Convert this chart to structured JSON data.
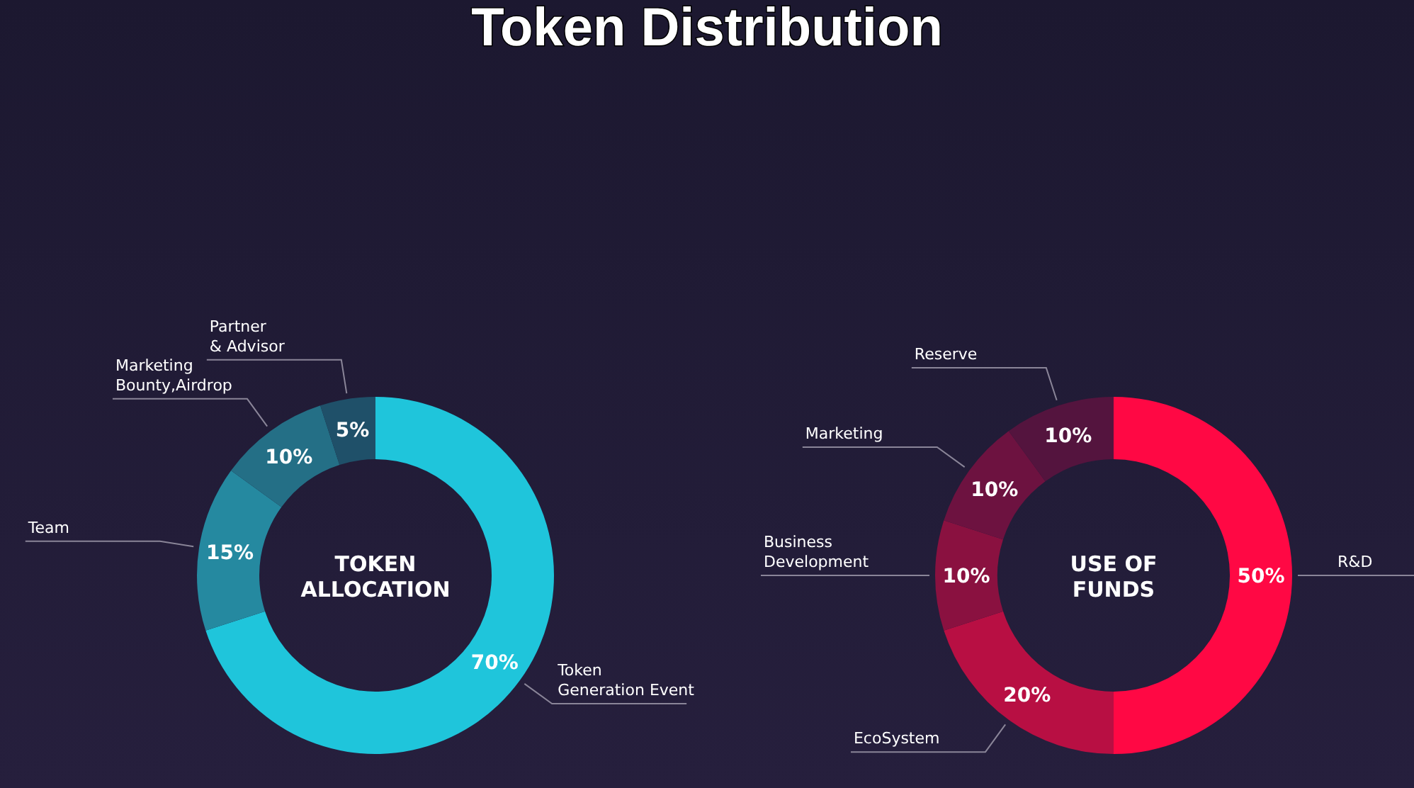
{
  "chart_data": [
    {
      "type": "donut",
      "title": "Token Distribution",
      "subtitle": "TOKEN\nALLOCATION",
      "categories": [
        "Token\nGeneration Event",
        "Team",
        "Marketing\nBounty,Airdrop",
        "Partner\n& Advisor"
      ],
      "values": [
        70,
        15,
        10,
        5
      ],
      "value_labels": [
        "70%",
        "15%",
        "10%",
        "5%"
      ],
      "colors": [
        "#1fc5db",
        "#2589a0",
        "#246f86",
        "#1f5069"
      ]
    },
    {
      "type": "donut",
      "subtitle": "USE OF\nFUNDS",
      "categories": [
        "R&D",
        "EcoSystem",
        "Business\nDevelopment",
        "Marketing",
        "Reserve"
      ],
      "values": [
        50,
        20,
        10,
        10,
        10
      ],
      "value_labels": [
        "50%",
        "20%",
        "10%",
        "10%",
        "10%"
      ],
      "colors": [
        "#ff0844",
        "#b80f43",
        "#8a1140",
        "#6d1240",
        "#54143e"
      ]
    }
  ]
}
